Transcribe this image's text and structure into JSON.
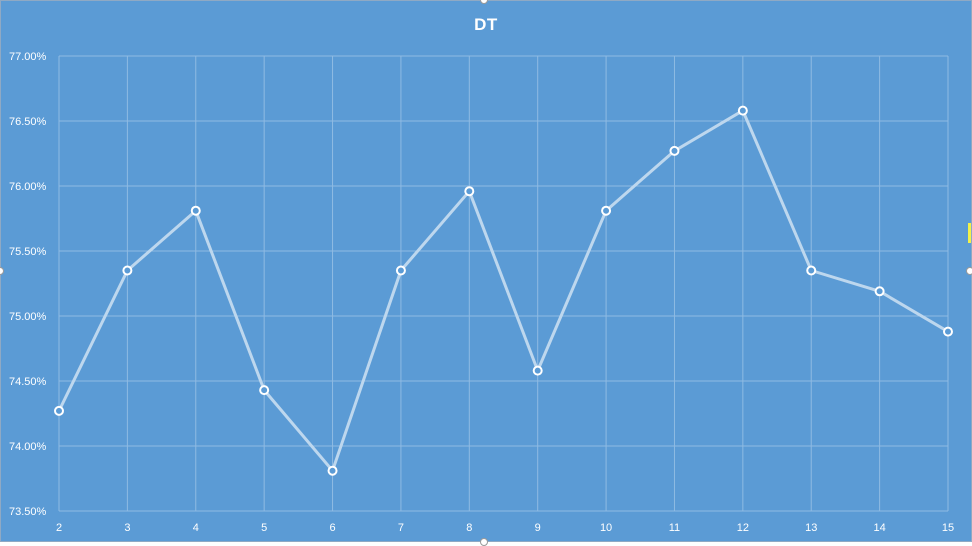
{
  "chart_data": {
    "type": "line",
    "title": "DT",
    "xlabel": "",
    "ylabel": "",
    "x": [
      "2",
      "3",
      "4",
      "5",
      "6",
      "7",
      "8",
      "9",
      "10",
      "11",
      "12",
      "13",
      "14",
      "15"
    ],
    "series": [
      {
        "values": [
          74.27,
          75.35,
          75.81,
          74.43,
          73.81,
          75.35,
          75.96,
          74.58,
          75.81,
          76.27,
          76.58,
          75.35,
          75.19,
          74.88
        ]
      }
    ],
    "y_ticks": [
      "73.50%",
      "74.00%",
      "74.50%",
      "75.00%",
      "75.50%",
      "76.00%",
      "76.50%",
      "77.00%"
    ],
    "ylim": [
      73.5,
      77.0
    ],
    "y_format": "percent, 2 decimals",
    "grid": true,
    "legend": "none",
    "colors": {
      "background": "#5b9bd5",
      "line": "#bdd7ee",
      "marker_fill": "#5b9bd5",
      "marker_stroke": "#ffffff",
      "gridline": "#8fbbe3",
      "text": "#ffffff"
    }
  }
}
